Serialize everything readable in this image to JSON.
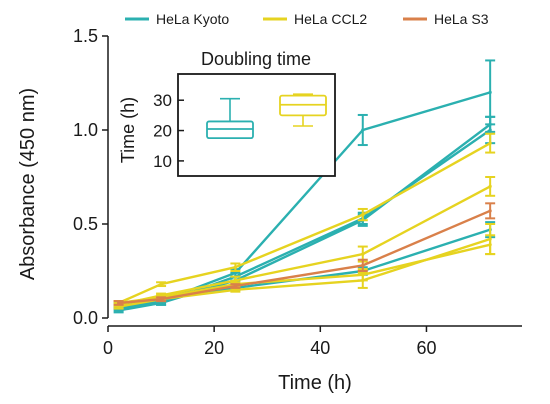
{
  "chart_data": [
    {
      "type": "line",
      "title": "",
      "xlabel": "Time (h)",
      "ylabel": "Absorbance (450 nm)",
      "xlim": [
        0,
        78
      ],
      "ylim": [
        0,
        1.5
      ],
      "xticks": [
        "0",
        "20",
        "40",
        "60"
      ],
      "yticks": [
        "0.0",
        "0.5",
        "1.0",
        "1.5"
      ],
      "legend_position": "top",
      "colors": {
        "HeLa Kyoto": "#2bb0b0",
        "HeLa CCL2": "#e6d320",
        "HeLa S3": "#d9804a"
      },
      "series": [
        {
          "name": "HeLa Kyoto",
          "x": [
            2,
            10,
            24,
            48,
            72
          ],
          "values": [
            0.04,
            0.08,
            0.22,
            0.53,
            1.0
          ],
          "errors": [
            0.01,
            0.01,
            0.02,
            0.03,
            0.07
          ]
        },
        {
          "name": "",
          "group": "HeLa Kyoto",
          "x": [
            2,
            10,
            24,
            48,
            72
          ],
          "values": [
            0.06,
            0.09,
            0.24,
            1.0,
            1.2
          ],
          "errors": [
            0.01,
            0.01,
            0.02,
            0.08,
            0.17
          ]
        },
        {
          "name": "",
          "group": "HeLa Kyoto",
          "x": [
            2,
            10,
            24,
            48,
            72
          ],
          "values": [
            0.05,
            0.08,
            0.2,
            0.52,
            1.03
          ],
          "errors": [
            0.01,
            0.01,
            0.02,
            0.03,
            0.04
          ]
        },
        {
          "name": "",
          "group": "HeLa Kyoto",
          "x": [
            2,
            10,
            24,
            48,
            72
          ],
          "values": [
            0.07,
            0.1,
            0.16,
            0.25,
            0.47
          ],
          "errors": [
            0.01,
            0.01,
            0.01,
            0.02,
            0.04
          ]
        },
        {
          "name": "HeLa CCL2",
          "x": [
            2,
            10,
            24,
            48,
            72
          ],
          "values": [
            0.08,
            0.18,
            0.27,
            0.55,
            0.93
          ],
          "errors": [
            0.01,
            0.01,
            0.02,
            0.03,
            0.05
          ]
        },
        {
          "name": "",
          "group": "HeLa CCL2",
          "x": [
            2,
            10,
            24,
            48,
            72
          ],
          "values": [
            0.07,
            0.12,
            0.2,
            0.34,
            0.7
          ],
          "errors": [
            0.01,
            0.01,
            0.02,
            0.04,
            0.05
          ]
        },
        {
          "name": "",
          "group": "HeLa CCL2",
          "x": [
            2,
            10,
            24,
            48,
            72
          ],
          "values": [
            0.06,
            0.1,
            0.15,
            0.2,
            0.42
          ],
          "errors": [
            0.01,
            0.01,
            0.01,
            0.04,
            0.08
          ]
        },
        {
          "name": "",
          "group": "HeLa CCL2",
          "x": [
            2,
            10,
            24,
            48,
            72
          ],
          "values": [
            0.08,
            0.11,
            0.18,
            0.23,
            0.39
          ],
          "errors": [
            0.01,
            0.01,
            0.01,
            0.03,
            0.05
          ]
        },
        {
          "name": "HeLa S3",
          "x": [
            2,
            10,
            24,
            48,
            72
          ],
          "values": [
            0.08,
            0.1,
            0.17,
            0.28,
            0.57
          ],
          "errors": [
            0.01,
            0.01,
            0.01,
            0.03,
            0.04
          ]
        }
      ]
    },
    {
      "type": "box",
      "title": "Doubling time",
      "ylabel": "Time (h)",
      "ylim": [
        7,
        36
      ],
      "yticks": [
        "10",
        "20",
        "30"
      ],
      "boxes": [
        {
          "group": "HeLa Kyoto",
          "whisker_low": 17.5,
          "q1": 17.5,
          "median": 20.5,
          "q3": 23,
          "whisker_high": 30.5
        },
        {
          "group": "HeLa CCL2",
          "whisker_low": 21.5,
          "q1": 25,
          "median": 28.5,
          "q3": 31.5,
          "whisker_high": 32
        }
      ]
    }
  ]
}
